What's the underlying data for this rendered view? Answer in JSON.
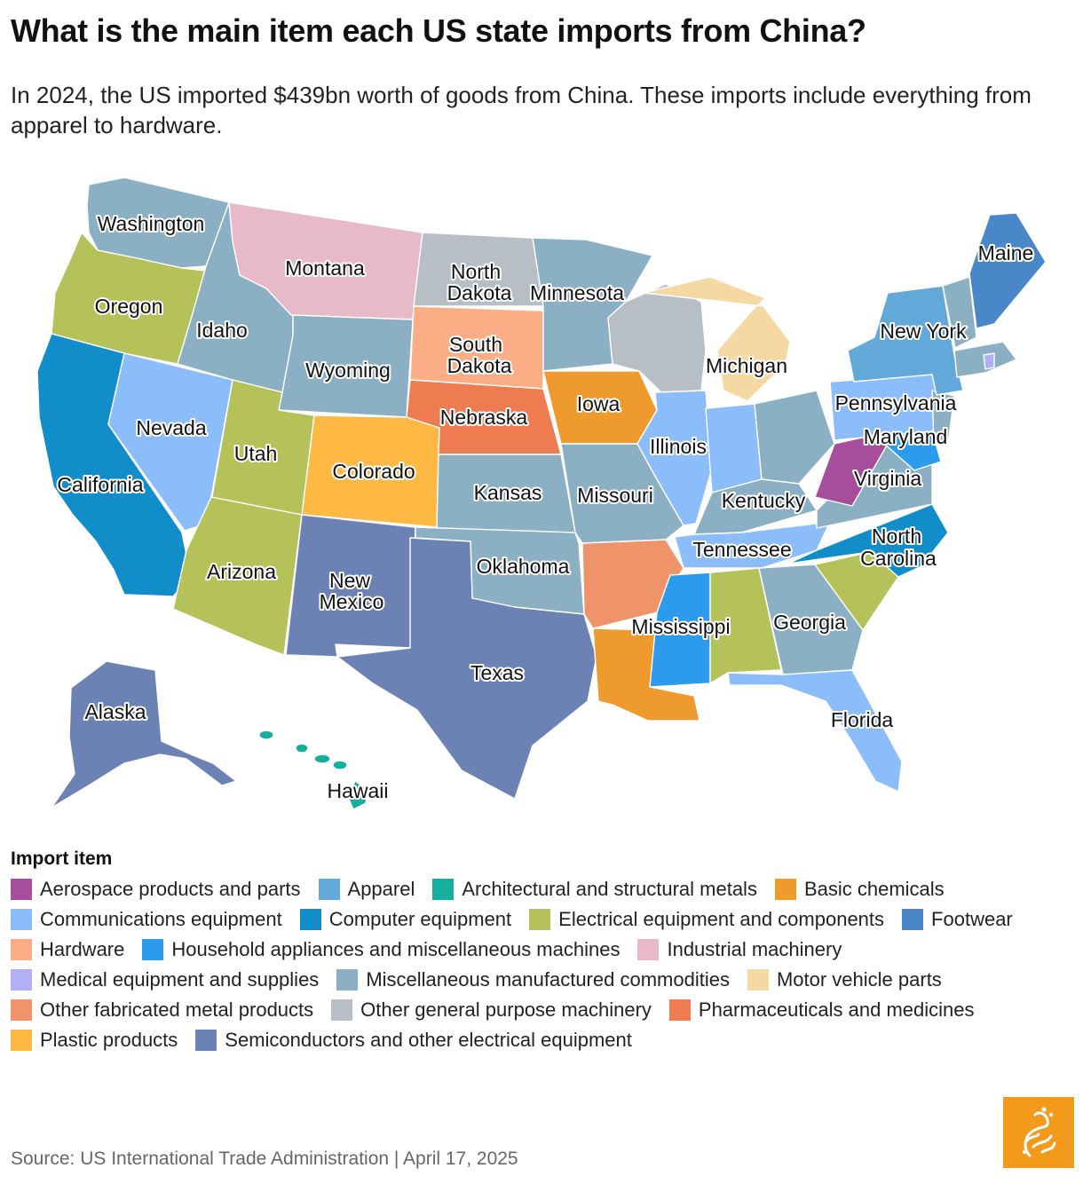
{
  "header": {
    "title": "What is the main item each US state imports from China?",
    "subtitle": "In 2024, the US imported $439bn worth of goods from China. These imports include everything from apparel to hardware."
  },
  "colors": {
    "aerospace": "#a64d9b",
    "apparel": "#62a9da",
    "architectural": "#16ae9c",
    "basic_chemicals": "#ef9a2c",
    "communications": "#8cbdfb",
    "computer": "#118dc9",
    "electrical": "#b5c25a",
    "footwear": "#4a87c8",
    "hardware": "#fbae85",
    "household": "#2d9bed",
    "industrial": "#e7b9c9",
    "medical": "#b1b0f7",
    "misc": "#8bafc3",
    "motor": "#f6d8a3",
    "other_metal": "#ef936b",
    "general_machinery": "#b8bec5",
    "pharma": "#ef7b50",
    "plastic": "#feb945",
    "semiconductors": "#6d82b4"
  },
  "legend": {
    "title": "Import item",
    "items": [
      {
        "label": "Aerospace products and parts",
        "color": "#a64d9b"
      },
      {
        "label": "Apparel",
        "color": "#62a9da"
      },
      {
        "label": "Architectural and structural metals",
        "color": "#16ae9c"
      },
      {
        "label": "Basic chemicals",
        "color": "#ef9a2c"
      },
      {
        "label": "Communications equipment",
        "color": "#8cbdfb"
      },
      {
        "label": "Computer equipment",
        "color": "#118dc9"
      },
      {
        "label": "Electrical equipment and components",
        "color": "#b5c25a"
      },
      {
        "label": "Footwear",
        "color": "#4a87c8"
      },
      {
        "label": "Hardware",
        "color": "#fbae85"
      },
      {
        "label": "Household appliances and miscellaneous machines",
        "color": "#2d9bed"
      },
      {
        "label": "Industrial machinery",
        "color": "#e7b9c9"
      },
      {
        "label": "Medical equipment and supplies",
        "color": "#b1b0f7"
      },
      {
        "label": "Miscellaneous manufactured commodities",
        "color": "#8bafc3"
      },
      {
        "label": "Motor vehicle parts",
        "color": "#f6d8a3"
      },
      {
        "label": "Other fabricated metal products",
        "color": "#ef936b"
      },
      {
        "label": "Other general purpose machinery",
        "color": "#b8bec5"
      },
      {
        "label": "Pharmaceuticals and medicines",
        "color": "#ef7b50"
      },
      {
        "label": "Plastic products",
        "color": "#feb945"
      },
      {
        "label": "Semiconductors and other electrical equipment",
        "color": "#6d82b4"
      }
    ]
  },
  "labels": {
    "washington": "Washington",
    "oregon": "Oregon",
    "california": "California",
    "nevada": "Nevada",
    "idaho": "Idaho",
    "montana": "Montana",
    "wyoming": "Wyoming",
    "utah": "Utah",
    "colorado": "Colorado",
    "arizona": "Arizona",
    "new_mexico_1": "New",
    "new_mexico_2": "Mexico",
    "north_dakota_1": "North",
    "north_dakota_2": "Dakota",
    "south_dakota_1": "South",
    "south_dakota_2": "Dakota",
    "nebraska": "Nebraska",
    "kansas": "Kansas",
    "oklahoma": "Oklahoma",
    "texas": "Texas",
    "minnesota": "Minnesota",
    "iowa": "Iowa",
    "missouri": "Missouri",
    "mississippi": "Mississippi",
    "illinois": "Illinois",
    "michigan": "Michigan",
    "kentucky": "Kentucky",
    "tennessee": "Tennessee",
    "georgia": "Georgia",
    "florida": "Florida",
    "virginia": "Virginia",
    "north_carolina_1": "North",
    "north_carolina_2": "Carolina",
    "maryland": "Maryland",
    "pennsylvania": "Pennsylvania",
    "new_york": "New York",
    "maine": "Maine",
    "alaska": "Alaska",
    "hawaii": "Hawaii"
  },
  "footer": {
    "source": "Source: US International Trade Administration | April 17, 2025"
  }
}
